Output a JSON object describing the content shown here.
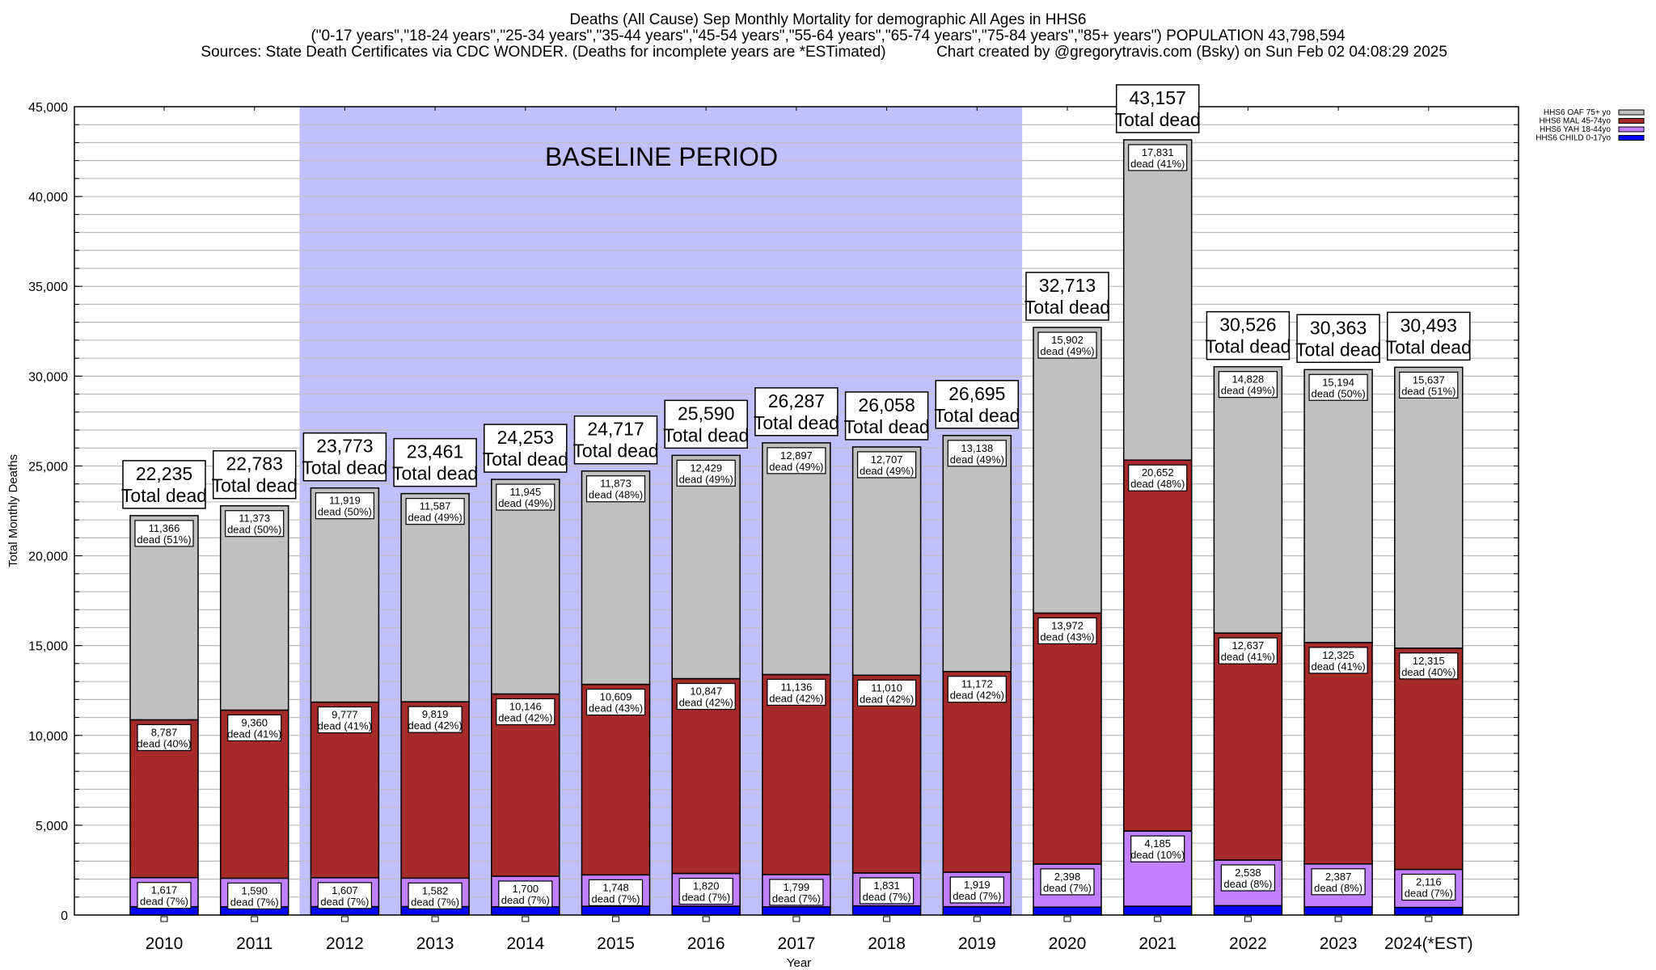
{
  "chart_data": {
    "type": "bar",
    "stacked": true,
    "title_lines": [
      "Deaths (All Cause) Sep Monthly Mortality for demographic All Ages in HHS6",
      "(\"0-17 years\",\"18-24 years\",\"25-34 years\",\"35-44 years\",\"45-54 years\",\"55-64 years\",\"65-74 years\",\"75-84 years\",\"85+ years\") POPULATION 43,798,594",
      "Sources: State Death Certificates via CDC WONDER. (Deaths for incomplete years are *ESTimated)",
      "Chart created by @gregorytravis.com (Bsky) on Sun Feb 02 04:08:29 2025"
    ],
    "xlabel": "Year",
    "ylabel": "Total Monthly Deaths",
    "ylim": [
      0,
      45000
    ],
    "yticks": [
      0,
      5000,
      10000,
      15000,
      20000,
      25000,
      30000,
      35000,
      40000,
      45000
    ],
    "ytick_labels": [
      "0",
      "5,000",
      "10,000",
      "15,000",
      "20,000",
      "25,000",
      "30,000",
      "35,000",
      "40,000",
      "45,000"
    ],
    "grid": true,
    "annotation": "BASELINE PERIOD",
    "baseline_range": [
      "2012",
      "2019"
    ],
    "total_suffix": "Total dead",
    "segment_suffix": "dead",
    "legend_position": "top-right",
    "categories": [
      "2010",
      "2011",
      "2012",
      "2013",
      "2014",
      "2015",
      "2016",
      "2017",
      "2018",
      "2019",
      "2020",
      "2021",
      "2022",
      "2023",
      "2024(*EST)"
    ],
    "totals": [
      22235,
      22783,
      23773,
      23461,
      24253,
      24717,
      25590,
      26287,
      26058,
      26695,
      32713,
      43157,
      30526,
      30363,
      30493
    ],
    "total_labels": [
      "22,235",
      "22,783",
      "23,773",
      "23,461",
      "24,253",
      "24,717",
      "25,590",
      "26,287",
      "26,058",
      "26,695",
      "32,713",
      "43,157",
      "30,526",
      "30,363",
      "30,493"
    ],
    "series": [
      {
        "name": "HHS6 CHILD 0-17yo",
        "color": "#0000ff",
        "values": [
          465,
          460,
          470,
          473,
          462,
          487,
          494,
          455,
          510,
          466,
          441,
          489,
          523,
          457,
          425
        ],
        "labels": null
      },
      {
        "name": "HHS6 YAH 18-44yo",
        "color": "#c080ff",
        "values": [
          1617,
          1590,
          1607,
          1582,
          1700,
          1748,
          1820,
          1799,
          1831,
          1919,
          2398,
          4185,
          2538,
          2387,
          2116
        ],
        "labels": [
          "1,617",
          "1,590",
          "1,607",
          "1,582",
          "1,700",
          "1,748",
          "1,820",
          "1,799",
          "1,831",
          "1,919",
          "2,398",
          "4,185",
          "2,538",
          "2,387",
          "2,116"
        ],
        "pct": [
          "7%",
          "7%",
          "7%",
          "7%",
          "7%",
          "7%",
          "7%",
          "7%",
          "7%",
          "7%",
          "7%",
          "10%",
          "8%",
          "8%",
          "7%"
        ]
      },
      {
        "name": "HHS6 MAL 45-74yo",
        "color": "#a52a2a",
        "values": [
          8787,
          9360,
          9777,
          9819,
          10146,
          10609,
          10847,
          11136,
          11010,
          11172,
          13972,
          20652,
          12637,
          12325,
          12315
        ],
        "labels": [
          "8,787",
          "9,360",
          "9,777",
          "9,819",
          "10,146",
          "10,609",
          "10,847",
          "11,136",
          "11,010",
          "11,172",
          "13,972",
          "20,652",
          "12,637",
          "12,325",
          "12,315"
        ],
        "pct": [
          "40%",
          "41%",
          "41%",
          "42%",
          "42%",
          "43%",
          "42%",
          "42%",
          "42%",
          "42%",
          "43%",
          "48%",
          "41%",
          "41%",
          "40%"
        ]
      },
      {
        "name": "HHS6 OAF 75+ yo",
        "color": "#c0c0c0",
        "values": [
          11366,
          11373,
          11919,
          11587,
          11945,
          11873,
          12429,
          12897,
          12707,
          13138,
          15902,
          17831,
          14828,
          15194,
          15637
        ],
        "labels": [
          "11,366",
          "11,373",
          "11,919",
          "11,587",
          "11,945",
          "11,873",
          "12,429",
          "12,897",
          "12,707",
          "13,138",
          "15,902",
          "17,831",
          "14,828",
          "15,194",
          "15,637"
        ],
        "pct": [
          "51%",
          "50%",
          "50%",
          "49%",
          "49%",
          "48%",
          "49%",
          "49%",
          "49%",
          "49%",
          "49%",
          "41%",
          "49%",
          "50%",
          "51%"
        ]
      }
    ],
    "colors": {
      "baseline_shade": "#c0c0ff",
      "grid": "#c0c0c0"
    }
  }
}
